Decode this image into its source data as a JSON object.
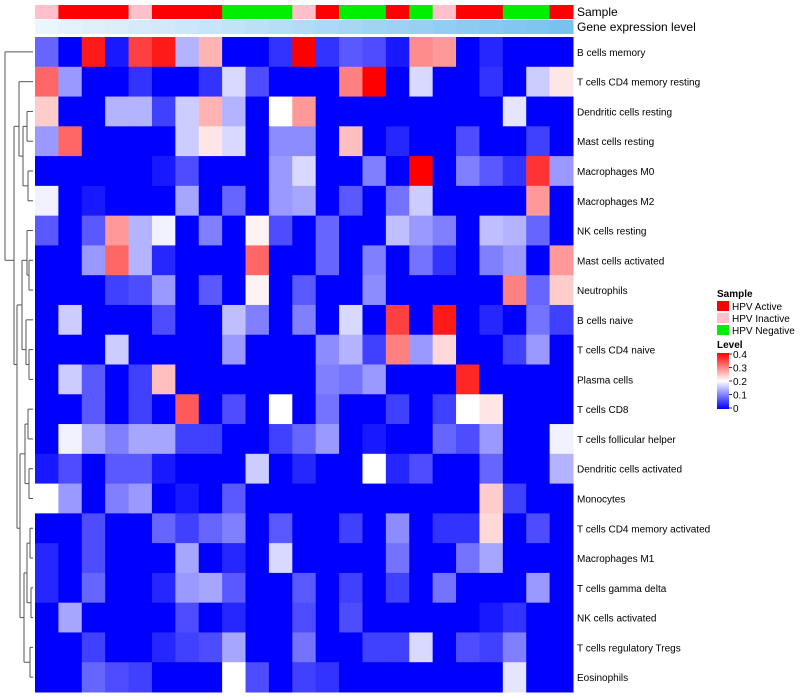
{
  "chart_data": {
    "type": "heatmap",
    "annotation_labels": {
      "sample": "Sample",
      "gene": "Gene expression level"
    },
    "rows": [
      "B cells memory",
      "T cells CD4 memory resting",
      "Dendritic cells resting",
      "Mast cells resting",
      "Macrophages M0",
      "Macrophages M2",
      "NK cells resting",
      "Mast cells activated",
      "Neutrophils",
      "B cells naive",
      "T cells CD4 naive",
      "Plasma cells",
      "T cells CD8",
      "T cells follicular helper",
      "Dendritic cells activated",
      "Monocytes",
      "T cells CD4 memory activated",
      "Macrophages M1",
      "T cells gamma delta",
      "NK cells activated",
      "T cells regulatory  Tregs",
      "Eosinophils"
    ],
    "sample_colors": {
      "Active": "#ff0000",
      "Inactive": "#ffc0cb",
      "Negative": "#00ee00"
    },
    "samples": [
      "Inactive",
      "Active",
      "Active",
      "Active",
      "Inactive",
      "Active",
      "Active",
      "Active",
      "Negative",
      "Negative",
      "Negative",
      "Inactive",
      "Active",
      "Negative",
      "Negative",
      "Active",
      "Negative",
      "Inactive",
      "Active",
      "Active",
      "Negative",
      "Negative",
      "Active"
    ],
    "gene_expression": [
      0.0,
      0.05,
      0.1,
      0.14,
      0.19,
      0.23,
      0.27,
      0.32,
      0.36,
      0.41,
      0.45,
      0.5,
      0.55,
      0.59,
      0.64,
      0.68,
      0.73,
      0.77,
      0.82,
      0.86,
      0.91,
      0.95,
      1.0
    ],
    "matrix": [
      [
        0.08,
        0.0,
        0.38,
        0.02,
        0.35,
        0.38,
        0.14,
        0.26,
        0.0,
        0.0,
        0.04,
        0.4,
        0.04,
        0.07,
        0.06,
        0.02,
        0.29,
        0.28,
        0.0,
        0.03,
        0.0,
        0.0,
        0.0
      ],
      [
        0.32,
        0.12,
        0.0,
        0.0,
        0.04,
        0.0,
        0.0,
        0.04,
        0.17,
        0.06,
        0.0,
        0.0,
        0.0,
        0.3,
        0.4,
        0.0,
        0.17,
        0.0,
        0.0,
        0.04,
        0.0,
        0.16,
        0.22
      ],
      [
        0.24,
        0.0,
        0.0,
        0.14,
        0.14,
        0.05,
        0.16,
        0.26,
        0.14,
        0.0,
        0.2,
        0.28,
        0.0,
        0.0,
        0.0,
        0.0,
        0.0,
        0.0,
        0.0,
        0.0,
        0.18,
        0.0,
        0.0
      ],
      [
        0.12,
        0.32,
        0.0,
        0.0,
        0.0,
        0.0,
        0.16,
        0.22,
        0.17,
        0.0,
        0.11,
        0.11,
        0.0,
        0.25,
        0.0,
        0.03,
        0.0,
        0.0,
        0.06,
        0.0,
        0.0,
        0.05,
        0.0
      ],
      [
        0.0,
        0.0,
        0.0,
        0.0,
        0.0,
        0.02,
        0.06,
        0.0,
        0.0,
        0.0,
        0.12,
        0.17,
        0.0,
        0.0,
        0.1,
        0.0,
        0.4,
        0.0,
        0.1,
        0.07,
        0.04,
        0.36,
        0.12
      ],
      [
        0.19,
        0.0,
        0.02,
        0.0,
        0.0,
        0.0,
        0.13,
        0.0,
        0.08,
        0.0,
        0.12,
        0.13,
        0.0,
        0.07,
        0.0,
        0.09,
        0.16,
        0.0,
        0.0,
        0.0,
        0.0,
        0.28,
        0.0
      ],
      [
        0.07,
        0.0,
        0.07,
        0.28,
        0.14,
        0.19,
        0.0,
        0.1,
        0.0,
        0.21,
        0.06,
        0.0,
        0.08,
        0.0,
        0.0,
        0.15,
        0.12,
        0.1,
        0.0,
        0.15,
        0.14,
        0.08,
        0.0
      ],
      [
        0.0,
        0.0,
        0.12,
        0.32,
        0.14,
        0.03,
        0.0,
        0.0,
        0.0,
        0.32,
        0.0,
        0.0,
        0.08,
        0.0,
        0.1,
        0.0,
        0.09,
        0.04,
        0.0,
        0.1,
        0.12,
        0.0,
        0.28
      ],
      [
        0.0,
        0.0,
        0.0,
        0.05,
        0.06,
        0.12,
        0.0,
        0.07,
        0.0,
        0.21,
        0.0,
        0.07,
        0.0,
        0.0,
        0.11,
        0.0,
        0.0,
        0.0,
        0.0,
        0.0,
        0.3,
        0.08,
        0.24
      ],
      [
        0.0,
        0.16,
        0.0,
        0.0,
        0.0,
        0.06,
        0.0,
        0.0,
        0.15,
        0.1,
        0.0,
        0.1,
        0.0,
        0.17,
        0.0,
        0.35,
        0.0,
        0.38,
        0.0,
        0.03,
        0.0,
        0.09,
        0.05
      ],
      [
        0.0,
        0.0,
        0.0,
        0.16,
        0.0,
        0.0,
        0.0,
        0.0,
        0.12,
        0.0,
        0.0,
        0.0,
        0.11,
        0.14,
        0.05,
        0.3,
        0.12,
        0.23,
        0.0,
        0.0,
        0.05,
        0.12,
        0.0
      ],
      [
        0.0,
        0.16,
        0.07,
        0.0,
        0.05,
        0.25,
        0.0,
        0.0,
        0.0,
        0.0,
        0.0,
        0.0,
        0.1,
        0.09,
        0.12,
        0.0,
        0.0,
        0.0,
        0.37,
        0.0,
        0.0,
        0.0,
        0.0
      ],
      [
        0.0,
        0.0,
        0.07,
        0.0,
        0.05,
        0.0,
        0.33,
        0.0,
        0.06,
        0.0,
        0.2,
        0.0,
        0.09,
        0.0,
        0.0,
        0.05,
        0.0,
        0.05,
        0.2,
        0.22,
        0.0,
        0.0,
        0.0
      ],
      [
        0.0,
        0.19,
        0.13,
        0.1,
        0.13,
        0.13,
        0.05,
        0.05,
        0.0,
        0.0,
        0.05,
        0.08,
        0.12,
        0.0,
        0.02,
        0.0,
        0.0,
        0.08,
        0.06,
        0.12,
        0.0,
        0.0,
        0.19
      ],
      [
        0.02,
        0.06,
        0.0,
        0.07,
        0.07,
        0.02,
        0.0,
        0.0,
        0.0,
        0.16,
        0.0,
        0.03,
        0.0,
        0.0,
        0.2,
        0.03,
        0.06,
        0.0,
        0.0,
        0.08,
        0.0,
        0.0,
        0.14
      ],
      [
        0.2,
        0.12,
        0.0,
        0.1,
        0.12,
        0.0,
        0.02,
        0.0,
        0.07,
        0.0,
        0.0,
        0.0,
        0.0,
        0.0,
        0.0,
        0.0,
        0.0,
        0.0,
        0.0,
        0.24,
        0.05,
        0.0,
        0.0
      ],
      [
        0.0,
        0.0,
        0.06,
        0.0,
        0.0,
        0.08,
        0.05,
        0.08,
        0.1,
        0.0,
        0.07,
        0.0,
        0.0,
        0.05,
        0.0,
        0.11,
        0.0,
        0.04,
        0.04,
        0.23,
        0.0,
        0.06,
        0.0
      ],
      [
        0.03,
        0.0,
        0.06,
        0.0,
        0.0,
        0.0,
        0.13,
        0.0,
        0.03,
        0.0,
        0.17,
        0.0,
        0.0,
        0.0,
        0.0,
        0.09,
        0.0,
        0.0,
        0.09,
        0.13,
        0.0,
        0.0,
        0.0
      ],
      [
        0.03,
        0.0,
        0.08,
        0.0,
        0.0,
        0.03,
        0.12,
        0.13,
        0.07,
        0.0,
        0.0,
        0.07,
        0.0,
        0.05,
        0.0,
        0.05,
        0.0,
        0.09,
        0.0,
        0.0,
        0.0,
        0.12,
        0.0
      ],
      [
        0.0,
        0.13,
        0.0,
        0.0,
        0.0,
        0.0,
        0.06,
        0.0,
        0.03,
        0.0,
        0.0,
        0.06,
        0.0,
        0.06,
        0.0,
        0.0,
        0.0,
        0.0,
        0.0,
        0.02,
        0.04,
        0.0,
        0.0
      ],
      [
        0.0,
        0.0,
        0.05,
        0.0,
        0.0,
        0.03,
        0.05,
        0.06,
        0.13,
        0.0,
        0.0,
        0.09,
        0.0,
        0.0,
        0.05,
        0.05,
        0.17,
        0.0,
        0.06,
        0.05,
        0.1,
        0.0,
        0.0
      ],
      [
        0.0,
        0.0,
        0.08,
        0.06,
        0.05,
        0.0,
        0.0,
        0.0,
        0.2,
        0.06,
        0.0,
        0.05,
        0.04,
        0.0,
        0.0,
        0.0,
        0.0,
        0.0,
        0.0,
        0.0,
        0.18,
        0.0,
        0.0
      ]
    ],
    "legend": {
      "sample_title": "Sample",
      "sample_entries": [
        {
          "label": "HPV Active",
          "color": "#ff0000"
        },
        {
          "label": "HPV Inactive",
          "color": "#ffc0cb"
        },
        {
          "label": "HPV Negative",
          "color": "#00ee00"
        }
      ],
      "level_title": "Level",
      "level_ticks": [
        {
          "value": 0.4,
          "label": "0.4"
        },
        {
          "value": 0.3,
          "label": "0.3"
        },
        {
          "value": 0.2,
          "label": "0.2"
        },
        {
          "value": 0.1,
          "label": "0.1"
        },
        {
          "value": 0,
          "label": "0"
        }
      ]
    },
    "color_scale": {
      "low": "#0000ff",
      "mid": "#ffffff",
      "high": "#ff0000",
      "min": 0,
      "max": 0.4
    },
    "gene_colors": {
      "low": "#ebf5fc",
      "high": "#78c2f0"
    }
  }
}
